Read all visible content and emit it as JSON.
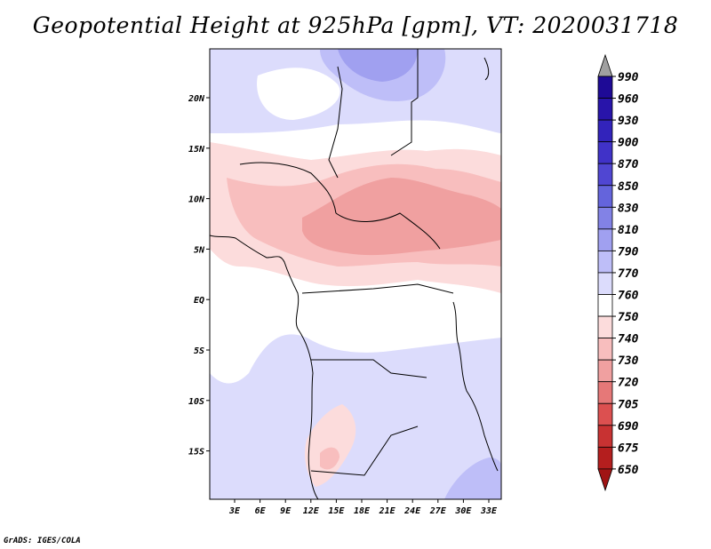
{
  "title": "Geopotential Height at 925hPa [gpm], VT: 2020031718",
  "footer": "GrADS: IGES/COLA",
  "map": {
    "x_ticks": [
      "3E",
      "6E",
      "9E",
      "12E",
      "15E",
      "18E",
      "21E",
      "24E",
      "27E",
      "30E",
      "33E"
    ],
    "y_ticks": [
      "20N",
      "15N",
      "10N",
      "5N",
      "EQ",
      "5S",
      "10S",
      "15S"
    ],
    "extent": {
      "lon": [
        0,
        35
      ],
      "lat": [
        -20,
        24
      ]
    },
    "colors": {
      "background_low": "#d8dcfc",
      "coast": "#000000"
    }
  },
  "colorbar": {
    "levels": [
      "990",
      "960",
      "930",
      "900",
      "870",
      "850",
      "830",
      "810",
      "790",
      "770",
      "760",
      "750",
      "740",
      "730",
      "720",
      "705",
      "690",
      "675",
      "650"
    ],
    "colors": [
      "#1e0a96",
      "#2814aa",
      "#3223bb",
      "#4032c8",
      "#5046d2",
      "#6464dc",
      "#8282e6",
      "#a0a0f0",
      "#bebef8",
      "#dcdcfc",
      "#ffffff",
      "#fcdcdc",
      "#f8bebe",
      "#f0a0a0",
      "#e67878",
      "#dc5050",
      "#c83232",
      "#b41e1e",
      "#a01414"
    ],
    "top_arrow_color": "#a0a0a0",
    "bottom_arrow_color": "#a01414"
  }
}
